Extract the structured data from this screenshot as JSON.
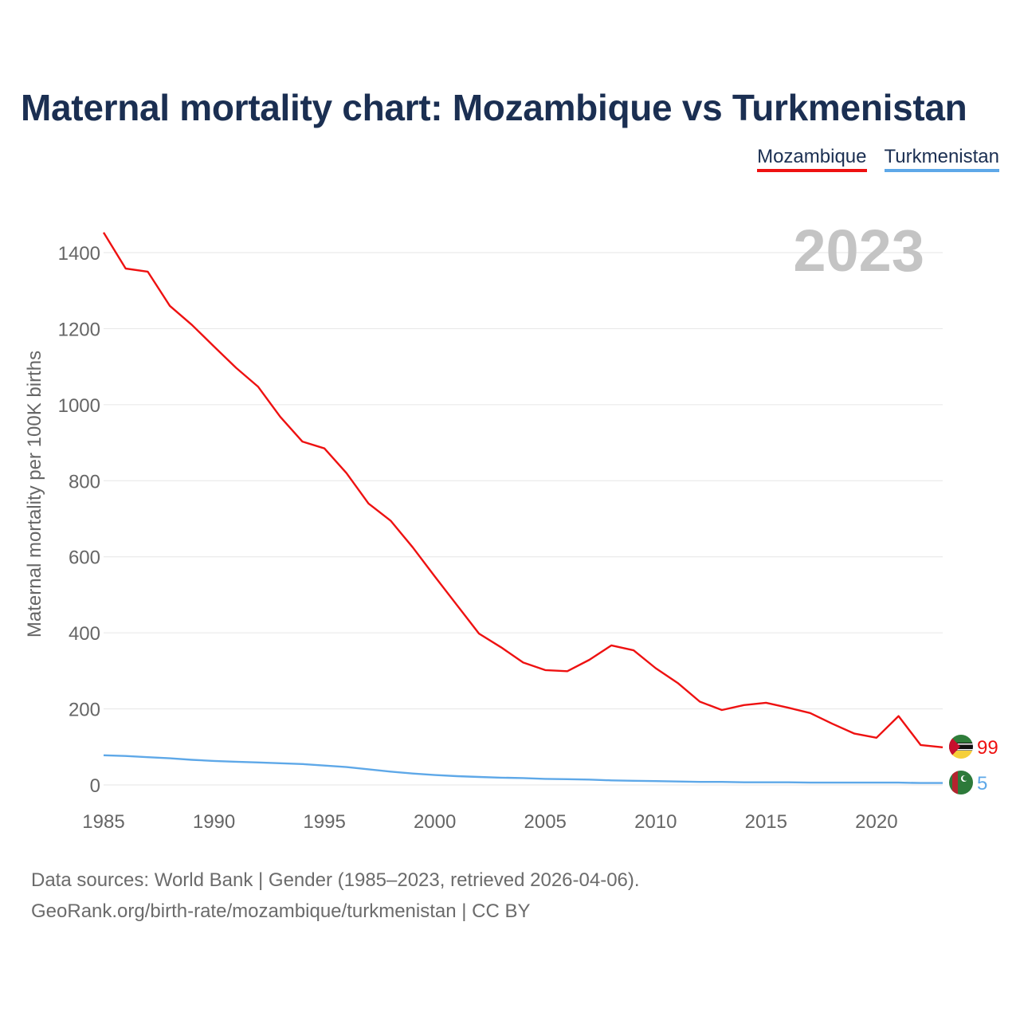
{
  "title": "Maternal mortality chart: Mozambique vs Turkmenistan",
  "year_label": "2023",
  "legend": [
    {
      "name": "Mozambique",
      "color": "#ee1111"
    },
    {
      "name": "Turkmenistan",
      "color": "#5ea8e8"
    }
  ],
  "source": {
    "line1": "Data sources: World Bank | Gender (1985–2023, retrieved 2026-04-06).",
    "line2": "GeoRank.org/birth-rate/mozambique/turkmenistan | CC BY"
  },
  "chart_data": {
    "type": "line",
    "title": "Maternal mortality chart: Mozambique vs Turkmenistan",
    "xlabel": "",
    "ylabel": "Maternal mortality per 100K births",
    "xlim": [
      1985,
      2023
    ],
    "ylim": [
      0,
      1450
    ],
    "x_ticks": [
      1985,
      1990,
      1995,
      2000,
      2005,
      2010,
      2015,
      2020
    ],
    "y_ticks": [
      0,
      200,
      400,
      600,
      800,
      1000,
      1200,
      1400
    ],
    "grid": true,
    "legend_position": "top-right",
    "x": [
      1985,
      1986,
      1987,
      1988,
      1989,
      1990,
      1991,
      1992,
      1993,
      1994,
      1995,
      1996,
      1997,
      1998,
      1999,
      2000,
      2001,
      2002,
      2003,
      2004,
      2005,
      2006,
      2007,
      2008,
      2009,
      2010,
      2011,
      2012,
      2013,
      2014,
      2015,
      2016,
      2017,
      2018,
      2019,
      2020,
      2021,
      2022,
      2023
    ],
    "series": [
      {
        "name": "Mozambique",
        "color": "#ee1111",
        "end_label": "99",
        "values": [
          1453,
          1358,
          1350,
          1260,
          1210,
          1153,
          1097,
          1047,
          968,
          903,
          885,
          820,
          740,
          695,
          625,
          548,
          473,
          398,
          362,
          322,
          302,
          299,
          329,
          367,
          354,
          307,
          268,
          219,
          197,
          210,
          216,
          203,
          189,
          161,
          135,
          124,
          181,
          105,
          99
        ]
      },
      {
        "name": "Turkmenistan",
        "color": "#5ea8e8",
        "end_label": "5",
        "values": [
          78,
          76,
          73,
          70,
          66,
          63,
          61,
          59,
          57,
          55,
          51,
          47,
          41,
          35,
          30,
          26,
          23,
          21,
          19,
          18,
          16,
          15,
          14,
          12,
          11,
          10,
          9,
          8,
          8,
          7,
          7,
          7,
          6,
          6,
          6,
          6,
          6,
          5,
          5
        ]
      }
    ]
  }
}
